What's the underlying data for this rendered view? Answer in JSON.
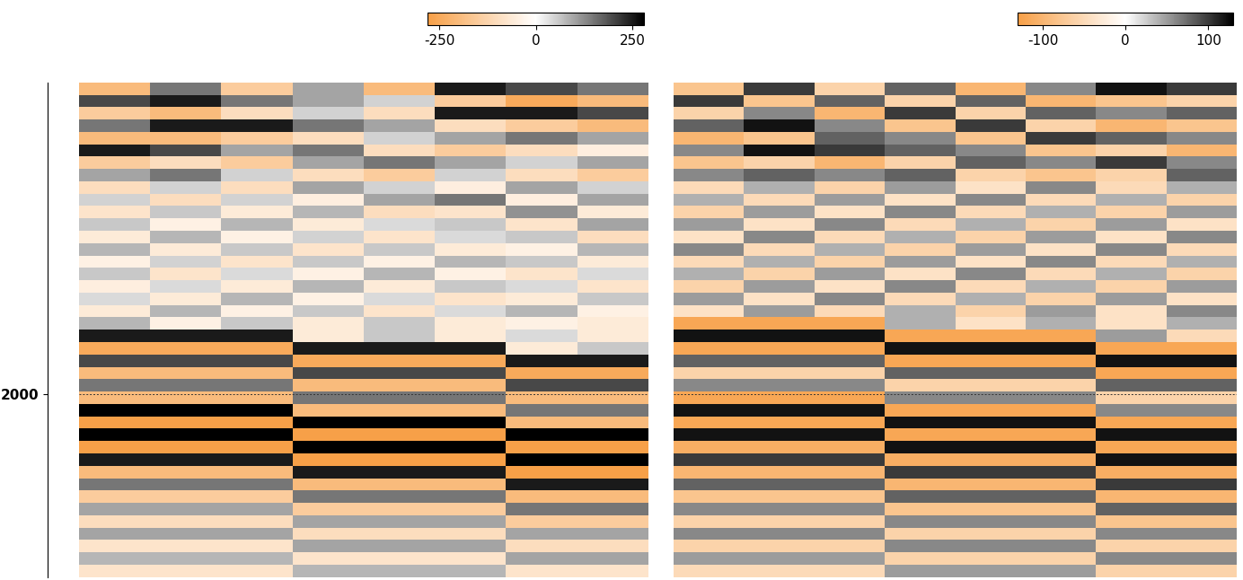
{
  "chart_data": [
    {
      "type": "heatmap",
      "ylim": [
        2430,
        1270
      ],
      "yticks": [
        2000
      ],
      "tick_labels": "y",
      "hline": 2000,
      "colorbar_range": [
        -280,
        280
      ],
      "colorbar_ticks": [
        -250,
        0,
        250
      ],
      "cells": [
        [
          -200,
          150,
          -150,
          100,
          -200,
          250,
          200,
          150
        ],
        [
          200,
          250,
          150,
          100,
          50,
          -150,
          -250,
          -200
        ],
        [
          -150,
          -200,
          -100,
          50,
          -100,
          250,
          250,
          200
        ],
        [
          150,
          250,
          250,
          150,
          100,
          -100,
          -150,
          -200
        ],
        [
          -200,
          -200,
          -150,
          -100,
          50,
          100,
          150,
          100
        ],
        [
          250,
          200,
          100,
          150,
          -100,
          -150,
          -100,
          -50
        ],
        [
          -150,
          -100,
          -150,
          100,
          150,
          100,
          50,
          100
        ],
        [
          100,
          150,
          50,
          -100,
          -150,
          50,
          -100,
          -150
        ],
        [
          -100,
          50,
          -100,
          100,
          50,
          -50,
          100,
          50
        ],
        [
          50,
          -100,
          50,
          -50,
          100,
          150,
          -50,
          100
        ],
        [
          -80,
          60,
          -60,
          80,
          -100,
          -80,
          120,
          -60
        ],
        [
          60,
          -40,
          80,
          -60,
          40,
          60,
          -80,
          100
        ],
        [
          -60,
          80,
          -40,
          50,
          -80,
          40,
          60,
          -100
        ],
        [
          80,
          -60,
          60,
          -80,
          60,
          -60,
          -40,
          80
        ],
        [
          -40,
          50,
          -80,
          60,
          -40,
          80,
          60,
          -60
        ],
        [
          60,
          -80,
          40,
          -40,
          80,
          -40,
          -80,
          40
        ],
        [
          -50,
          40,
          -60,
          80,
          -60,
          60,
          40,
          -80
        ],
        [
          40,
          -60,
          80,
          -40,
          40,
          -80,
          -60,
          60
        ],
        [
          -60,
          80,
          -40,
          60,
          -80,
          40,
          80,
          -40
        ],
        [
          80,
          -40,
          60,
          -60,
          60,
          -60,
          -40,
          -60
        ],
        [
          250,
          250,
          250,
          -60,
          60,
          -60,
          40,
          -60
        ],
        [
          -250,
          -250,
          -250,
          250,
          250,
          250,
          -60,
          60
        ],
        [
          200,
          200,
          200,
          -250,
          -250,
          -250,
          250,
          250
        ],
        [
          -200,
          -200,
          -200,
          200,
          200,
          200,
          -250,
          -250
        ],
        [
          150,
          150,
          150,
          -200,
          -200,
          -200,
          200,
          200
        ],
        [
          -200,
          -200,
          -200,
          150,
          150,
          150,
          -200,
          -200
        ],
        [
          280,
          280,
          280,
          -200,
          -200,
          -200,
          150,
          150
        ],
        [
          -280,
          -280,
          -280,
          280,
          280,
          280,
          -200,
          -200
        ],
        [
          280,
          280,
          280,
          -280,
          -280,
          -280,
          280,
          280
        ],
        [
          -280,
          -280,
          -280,
          280,
          280,
          280,
          -280,
          -280
        ],
        [
          250,
          250,
          250,
          -280,
          -280,
          -280,
          280,
          280
        ],
        [
          -200,
          -200,
          -200,
          250,
          250,
          250,
          -280,
          -280
        ],
        [
          150,
          150,
          150,
          -200,
          -200,
          -200,
          250,
          250
        ],
        [
          -150,
          -150,
          -150,
          150,
          150,
          150,
          -200,
          -200
        ],
        [
          100,
          100,
          100,
          -150,
          -150,
          -150,
          150,
          150
        ],
        [
          -100,
          -100,
          -100,
          100,
          100,
          100,
          -150,
          -150
        ],
        [
          100,
          100,
          100,
          -100,
          -100,
          -100,
          100,
          100
        ],
        [
          -80,
          -80,
          -80,
          100,
          100,
          100,
          -100,
          -100
        ],
        [
          80,
          80,
          80,
          -80,
          -80,
          -80,
          100,
          100
        ],
        [
          -80,
          -80,
          -80,
          80,
          80,
          80,
          -80,
          -80
        ]
      ]
    },
    {
      "type": "heatmap",
      "ylim": [
        2430,
        1270
      ],
      "tick_labels": false,
      "hline": 2000,
      "colorbar_range": [
        -130,
        130
      ],
      "colorbar_ticks": [
        -100,
        0,
        100
      ],
      "cells": [
        [
          -80,
          100,
          -60,
          80,
          -100,
          60,
          120,
          100
        ],
        [
          100,
          -80,
          80,
          -60,
          80,
          -100,
          -80,
          -60
        ],
        [
          -60,
          60,
          -100,
          100,
          -60,
          80,
          60,
          80
        ],
        [
          80,
          120,
          60,
          -80,
          100,
          -60,
          -100,
          -80
        ],
        [
          -100,
          -80,
          80,
          60,
          -80,
          100,
          80,
          60
        ],
        [
          60,
          120,
          100,
          80,
          60,
          -80,
          -60,
          -100
        ],
        [
          -80,
          -60,
          -100,
          -60,
          80,
          60,
          100,
          60
        ],
        [
          60,
          80,
          60,
          80,
          -60,
          -80,
          -60,
          80
        ],
        [
          -50,
          40,
          -60,
          50,
          -40,
          60,
          -50,
          40
        ],
        [
          40,
          -50,
          50,
          -40,
          60,
          -50,
          40,
          -60
        ],
        [
          -60,
          50,
          -40,
          60,
          -50,
          40,
          -60,
          50
        ],
        [
          50,
          -40,
          60,
          -50,
          40,
          -60,
          50,
          -40
        ],
        [
          -40,
          60,
          -50,
          40,
          -60,
          50,
          -40,
          60
        ],
        [
          60,
          -50,
          40,
          -60,
          50,
          -40,
          60,
          -50
        ],
        [
          -50,
          40,
          -60,
          50,
          -40,
          60,
          -50,
          40
        ],
        [
          40,
          -60,
          50,
          -40,
          60,
          -50,
          40,
          -60
        ],
        [
          -60,
          50,
          -40,
          60,
          -50,
          40,
          -60,
          50
        ],
        [
          50,
          -40,
          60,
          -50,
          40,
          -60,
          50,
          -40
        ],
        [
          -40,
          50,
          -50,
          40,
          -60,
          50,
          -40,
          60
        ],
        [
          -120,
          -120,
          -120,
          40,
          -40,
          40,
          -40,
          40
        ],
        [
          120,
          120,
          120,
          -120,
          -120,
          -120,
          50,
          -50
        ],
        [
          -120,
          -120,
          -120,
          120,
          120,
          120,
          -120,
          -120
        ],
        [
          80,
          80,
          80,
          -120,
          -120,
          -120,
          120,
          120
        ],
        [
          -60,
          -60,
          -60,
          80,
          80,
          80,
          -120,
          -120
        ],
        [
          60,
          60,
          60,
          -60,
          -60,
          -60,
          80,
          80
        ],
        [
          -120,
          -120,
          -120,
          60,
          60,
          60,
          -60,
          -60
        ],
        [
          120,
          120,
          120,
          -120,
          -120,
          -120,
          60,
          60
        ],
        [
          -120,
          -120,
          -120,
          120,
          120,
          120,
          -120,
          -120
        ],
        [
          120,
          120,
          120,
          -120,
          -120,
          -120,
          120,
          120
        ],
        [
          -110,
          -110,
          -110,
          120,
          120,
          120,
          -120,
          -120
        ],
        [
          100,
          100,
          100,
          -110,
          -110,
          -110,
          120,
          120
        ],
        [
          -100,
          -100,
          -100,
          100,
          100,
          100,
          -110,
          -110
        ],
        [
          80,
          80,
          80,
          -100,
          -100,
          -100,
          100,
          100
        ],
        [
          -80,
          -80,
          -80,
          80,
          80,
          80,
          -100,
          -100
        ],
        [
          60,
          60,
          60,
          -80,
          -80,
          -80,
          80,
          80
        ],
        [
          -60,
          -60,
          -60,
          60,
          60,
          60,
          -80,
          -80
        ],
        [
          60,
          60,
          60,
          -60,
          -60,
          -60,
          60,
          60
        ],
        [
          -60,
          -60,
          -60,
          60,
          60,
          60,
          -60,
          -60
        ],
        [
          50,
          50,
          50,
          -60,
          -60,
          -60,
          60,
          60
        ],
        [
          -50,
          -50,
          -50,
          50,
          50,
          50,
          -60,
          -60
        ]
      ]
    }
  ]
}
